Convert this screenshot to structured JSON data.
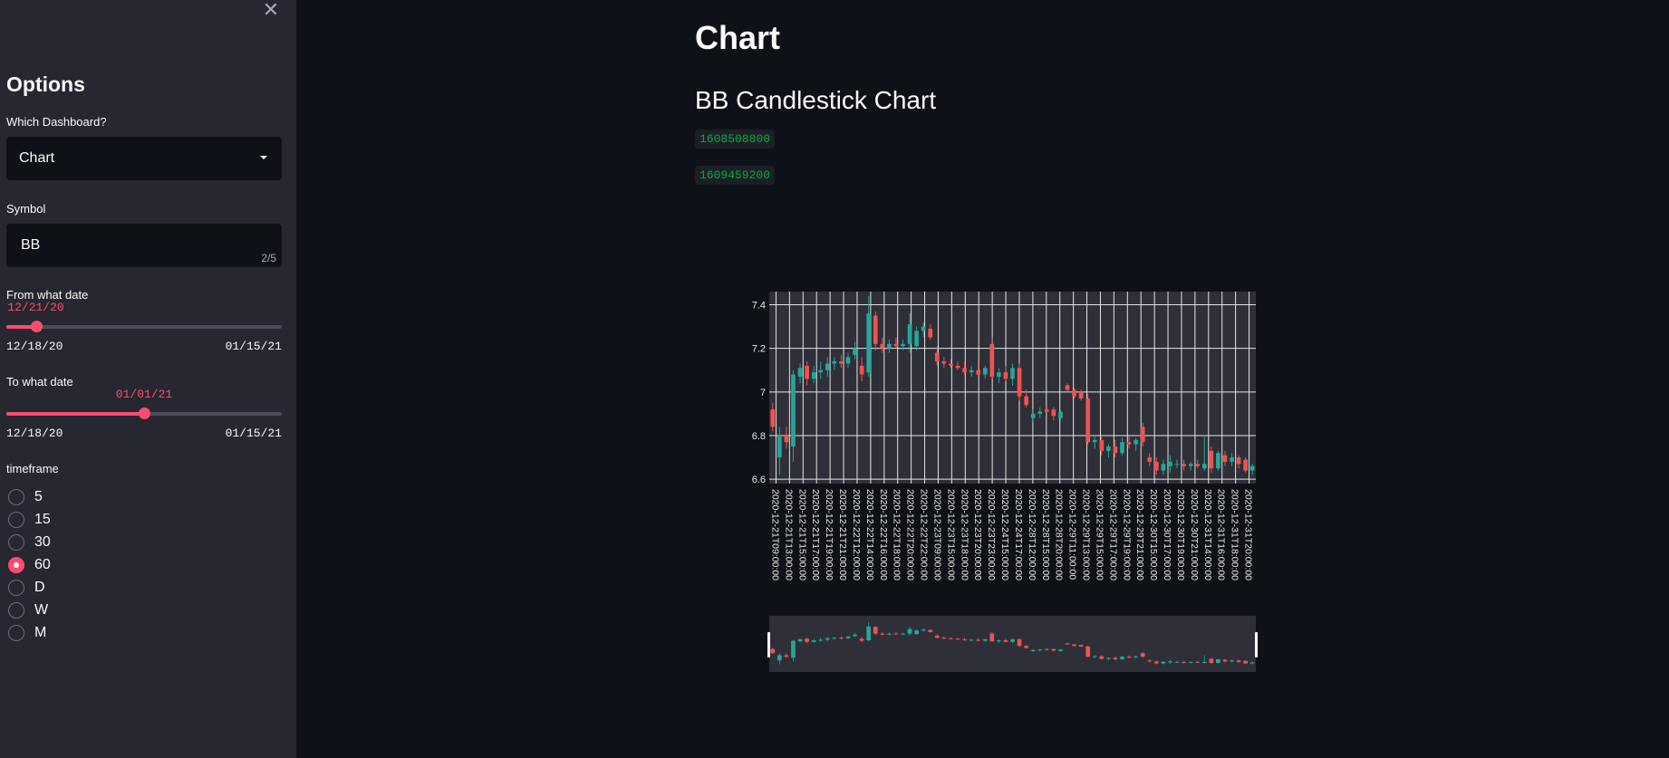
{
  "sidebar": {
    "close_icon": "close-icon",
    "title": "Options",
    "dashboard_label": "Which Dashboard?",
    "dashboard_value": "Chart",
    "symbol_label": "Symbol",
    "symbol_value": "BB",
    "symbol_count": "2/5",
    "from_label": "From what date",
    "from_value": "12/21/20",
    "from_fraction": 0.107,
    "from_min": "12/18/20",
    "from_max": "01/15/21",
    "to_label": "To what date",
    "to_value": "01/01/21",
    "to_fraction": 0.5,
    "to_min": "12/18/20",
    "to_max": "01/15/21",
    "timeframe_label": "timeframe",
    "timeframe_options": [
      "5",
      "15",
      "30",
      "60",
      "D",
      "W",
      "M"
    ],
    "timeframe_selected": "60"
  },
  "main": {
    "title": "Chart",
    "subtitle": "BB Candlestick Chart",
    "code1": "1608508800",
    "code2": "1609459200"
  },
  "colors": {
    "accent": "#ff4b6e",
    "up": "#26a69a",
    "down": "#ef5350",
    "plot_bg": "#2e2f38"
  },
  "chart_data": {
    "type": "candlestick",
    "title": "",
    "xlabel": "",
    "ylabel": "",
    "ylim": [
      6.58,
      7.46
    ],
    "yticks": [
      6.6,
      6.8,
      7,
      7.2,
      7.4
    ],
    "ytick_labels": [
      "6.6",
      "6.8",
      "7",
      "7.2",
      "7.4"
    ],
    "grid": true,
    "rangeslider": true,
    "xtick_labels": [
      "2020-12-21T09:00:00",
      "2020-12-21T13:00:00",
      "2020-12-21T15:00:00",
      "2020-12-21T17:00:00",
      "2020-12-21T19:00:00",
      "2020-12-21T21:00:00",
      "2020-12-22T12:00:00",
      "2020-12-22T14:00:00",
      "2020-12-22T16:00:00",
      "2020-12-22T18:00:00",
      "2020-12-22T20:00:00",
      "2020-12-22T22:00:00",
      "2020-12-23T09:00:00",
      "2020-12-23T15:00:00",
      "2020-12-23T18:00:00",
      "2020-12-23T20:00:00",
      "2020-12-23T23:00:00",
      "2020-12-24T15:00:00",
      "2020-12-24T17:00:00",
      "2020-12-28T12:00:00",
      "2020-12-28T15:00:00",
      "2020-12-28T20:00:00",
      "2020-12-29T11:00:00",
      "2020-12-29T13:00:00",
      "2020-12-29T15:00:00",
      "2020-12-29T17:00:00",
      "2020-12-29T19:00:00",
      "2020-12-29T21:00:00",
      "2020-12-30T15:00:00",
      "2020-12-30T17:00:00",
      "2020-12-30T19:00:00",
      "2020-12-30T21:00:00",
      "2020-12-31T14:00:00",
      "2020-12-31T16:00:00",
      "2020-12-31T18:00:00",
      "2020-12-31T20:00:00"
    ],
    "candles": [
      {
        "o": 6.92,
        "h": 6.95,
        "l": 6.82,
        "c": 6.84
      },
      {
        "o": 6.7,
        "h": 6.84,
        "l": 6.62,
        "c": 6.8
      },
      {
        "o": 6.8,
        "h": 6.84,
        "l": 6.74,
        "c": 6.77
      },
      {
        "o": 6.75,
        "h": 7.1,
        "l": 6.68,
        "c": 7.08
      },
      {
        "o": 7.07,
        "h": 7.13,
        "l": 7.04,
        "c": 7.11
      },
      {
        "o": 7.12,
        "h": 7.14,
        "l": 7.03,
        "c": 7.06
      },
      {
        "o": 7.06,
        "h": 7.12,
        "l": 7.04,
        "c": 7.09
      },
      {
        "o": 7.09,
        "h": 7.14,
        "l": 7.06,
        "c": 7.1
      },
      {
        "o": 7.1,
        "h": 7.16,
        "l": 7.07,
        "c": 7.13
      },
      {
        "o": 7.13,
        "h": 7.16,
        "l": 7.1,
        "c": 7.14
      },
      {
        "o": 7.14,
        "h": 7.17,
        "l": 7.11,
        "c": 7.13
      },
      {
        "o": 7.13,
        "h": 7.18,
        "l": 7.11,
        "c": 7.16
      },
      {
        "o": 7.17,
        "h": 7.23,
        "l": 7.15,
        "c": 7.2
      },
      {
        "o": 7.12,
        "h": 7.16,
        "l": 7.05,
        "c": 7.08
      },
      {
        "o": 7.09,
        "h": 7.44,
        "l": 7.07,
        "c": 7.36
      },
      {
        "o": 7.35,
        "h": 7.37,
        "l": 7.19,
        "c": 7.22
      },
      {
        "o": 7.22,
        "h": 7.25,
        "l": 7.18,
        "c": 7.2
      },
      {
        "o": 7.2,
        "h": 7.24,
        "l": 7.18,
        "c": 7.22
      },
      {
        "o": 7.22,
        "h": 7.25,
        "l": 7.2,
        "c": 7.21
      },
      {
        "o": 7.21,
        "h": 7.24,
        "l": 7.19,
        "c": 7.22
      },
      {
        "o": 7.22,
        "h": 7.36,
        "l": 7.18,
        "c": 7.31
      },
      {
        "o": 7.21,
        "h": 7.3,
        "l": 7.19,
        "c": 7.28
      },
      {
        "o": 7.28,
        "h": 7.32,
        "l": 7.25,
        "c": 7.3
      },
      {
        "o": 7.29,
        "h": 7.31,
        "l": 7.24,
        "c": 7.25
      },
      {
        "o": 7.18,
        "h": 7.21,
        "l": 7.12,
        "c": 7.14
      },
      {
        "o": 7.14,
        "h": 7.16,
        "l": 7.11,
        "c": 7.13
      },
      {
        "o": 7.13,
        "h": 7.15,
        "l": 7.11,
        "c": 7.12
      },
      {
        "o": 7.12,
        "h": 7.14,
        "l": 7.1,
        "c": 7.11
      },
      {
        "o": 7.11,
        "h": 7.14,
        "l": 7.08,
        "c": 7.09
      },
      {
        "o": 7.09,
        "h": 7.12,
        "l": 7.07,
        "c": 7.1
      },
      {
        "o": 7.1,
        "h": 7.14,
        "l": 7.07,
        "c": 7.08
      },
      {
        "o": 7.08,
        "h": 7.12,
        "l": 7.06,
        "c": 7.11
      },
      {
        "o": 7.22,
        "h": 7.25,
        "l": 7.06,
        "c": 7.07
      },
      {
        "o": 7.07,
        "h": 7.11,
        "l": 7.04,
        "c": 7.09
      },
      {
        "o": 7.09,
        "h": 7.12,
        "l": 7.05,
        "c": 7.06
      },
      {
        "o": 7.06,
        "h": 7.13,
        "l": 7.03,
        "c": 7.11
      },
      {
        "o": 7.11,
        "h": 7.13,
        "l": 6.96,
        "c": 6.98
      },
      {
        "o": 6.98,
        "h": 7.01,
        "l": 6.93,
        "c": 6.94
      },
      {
        "o": 6.88,
        "h": 6.92,
        "l": 6.86,
        "c": 6.9
      },
      {
        "o": 6.9,
        "h": 6.93,
        "l": 6.88,
        "c": 6.91
      },
      {
        "o": 6.92,
        "h": 6.94,
        "l": 6.89,
        "c": 6.91
      },
      {
        "o": 6.92,
        "h": 6.93,
        "l": 6.87,
        "c": 6.89
      },
      {
        "o": 6.88,
        "h": 6.92,
        "l": 6.87,
        "c": 6.91
      },
      {
        "o": 7.03,
        "h": 7.04,
        "l": 7.0,
        "c": 7.01
      },
      {
        "o": 7.01,
        "h": 7.02,
        "l": 6.97,
        "c": 6.98
      },
      {
        "o": 7.0,
        "h": 7.01,
        "l": 6.96,
        "c": 6.97
      },
      {
        "o": 6.97,
        "h": 6.99,
        "l": 6.76,
        "c": 6.77
      },
      {
        "o": 6.77,
        "h": 6.8,
        "l": 6.74,
        "c": 6.78
      },
      {
        "o": 6.78,
        "h": 6.8,
        "l": 6.71,
        "c": 6.73
      },
      {
        "o": 6.73,
        "h": 6.76,
        "l": 6.7,
        "c": 6.75
      },
      {
        "o": 6.75,
        "h": 6.78,
        "l": 6.7,
        "c": 6.72
      },
      {
        "o": 6.72,
        "h": 6.79,
        "l": 6.71,
        "c": 6.77
      },
      {
        "o": 6.77,
        "h": 6.8,
        "l": 6.74,
        "c": 6.76
      },
      {
        "o": 6.76,
        "h": 6.79,
        "l": 6.73,
        "c": 6.78
      },
      {
        "o": 6.84,
        "h": 6.86,
        "l": 6.75,
        "c": 6.77
      },
      {
        "o": 6.7,
        "h": 6.72,
        "l": 6.66,
        "c": 6.68
      },
      {
        "o": 6.68,
        "h": 6.7,
        "l": 6.62,
        "c": 6.64
      },
      {
        "o": 6.64,
        "h": 6.69,
        "l": 6.62,
        "c": 6.67
      },
      {
        "o": 6.66,
        "h": 6.71,
        "l": 6.63,
        "c": 6.68
      },
      {
        "o": 6.67,
        "h": 6.69,
        "l": 6.65,
        "c": 6.67
      },
      {
        "o": 6.67,
        "h": 6.69,
        "l": 6.64,
        "c": 6.66
      },
      {
        "o": 6.66,
        "h": 6.68,
        "l": 6.64,
        "c": 6.67
      },
      {
        "o": 6.67,
        "h": 6.69,
        "l": 6.65,
        "c": 6.66
      },
      {
        "o": 6.65,
        "h": 6.8,
        "l": 6.64,
        "c": 6.67
      },
      {
        "o": 6.73,
        "h": 6.75,
        "l": 6.63,
        "c": 6.65
      },
      {
        "o": 6.65,
        "h": 6.73,
        "l": 6.64,
        "c": 6.72
      },
      {
        "o": 6.71,
        "h": 6.73,
        "l": 6.66,
        "c": 6.68
      },
      {
        "o": 6.68,
        "h": 6.72,
        "l": 6.66,
        "c": 6.7
      },
      {
        "o": 6.7,
        "h": 6.71,
        "l": 6.65,
        "c": 6.67
      },
      {
        "o": 6.69,
        "h": 6.7,
        "l": 6.63,
        "c": 6.64
      },
      {
        "o": 6.64,
        "h": 6.67,
        "l": 6.62,
        "c": 6.66
      }
    ]
  }
}
